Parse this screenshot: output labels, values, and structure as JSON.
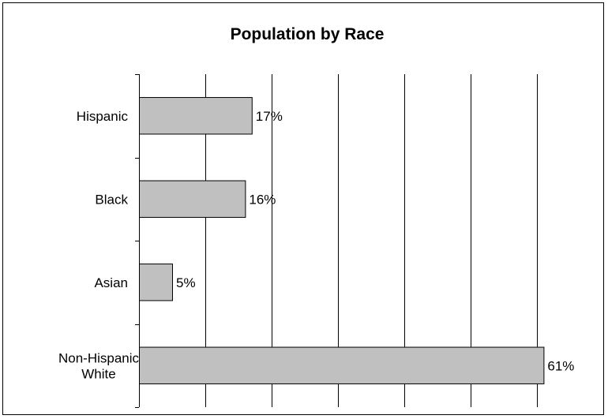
{
  "chart_data": {
    "type": "bar",
    "orientation": "horizontal",
    "title": "Population by Race",
    "categories": [
      [
        "Hispanic"
      ],
      [
        "Black"
      ],
      [
        "Asian"
      ],
      [
        "Non-Hispanic",
        "White"
      ]
    ],
    "values": [
      17,
      16,
      5,
      61
    ],
    "data_labels": [
      "17%",
      "16%",
      "5%",
      "61%"
    ],
    "xlim": [
      0,
      70
    ],
    "x_gridline_step": 10,
    "x_axis_labels_shown": false,
    "grid": "vertical",
    "legend": "none",
    "bar_color": "#c0c0c0",
    "bar_edge_color": "#000000"
  }
}
